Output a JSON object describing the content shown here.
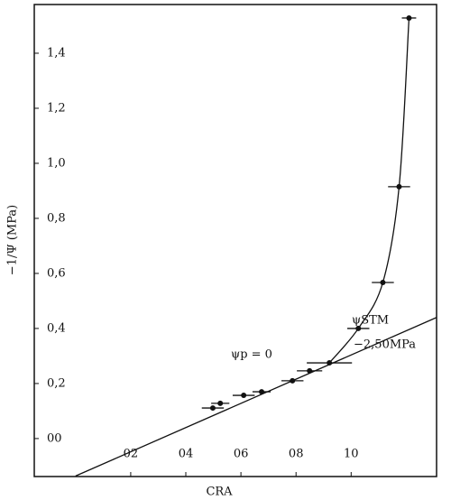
{
  "chart_data": {
    "type": "scatter",
    "x_label": "CRA",
    "y_label": "−1/Ψ (MPa)",
    "annotations": [
      "ψp = 0",
      "ψSTM",
      "−2,50MPa"
    ],
    "xlim": [
      -0.15,
      1.31
    ],
    "ylim": [
      -0.138,
      1.577
    ],
    "xticks": [
      {
        "value": 0.2,
        "label": "02"
      },
      {
        "value": 0.4,
        "label": "04"
      },
      {
        "value": 0.6,
        "label": "06"
      },
      {
        "value": 0.8,
        "label": "08"
      },
      {
        "value": 1.0,
        "label": "10"
      }
    ],
    "yticks": [
      {
        "value": 0,
        "label": "00"
      },
      {
        "value": 0.2,
        "label": "0,2"
      },
      {
        "value": 0.4,
        "label": "0,4"
      },
      {
        "value": 0.6,
        "label": "0,6"
      },
      {
        "value": 0.8,
        "label": "0,8"
      },
      {
        "value": 1.0,
        "label": "1,0"
      },
      {
        "value": 1.2,
        "label": "1,2"
      },
      {
        "value": 1.4,
        "label": "1,4"
      }
    ],
    "color": "#111111",
    "x": [
      0.498,
      0.525,
      0.61,
      0.675,
      0.787,
      0.849,
      0.921,
      1.026,
      1.115,
      1.174,
      1.21
    ],
    "values": [
      0.111,
      0.128,
      0.157,
      0.17,
      0.21,
      0.246,
      0.275,
      0.4,
      0.567,
      0.915,
      1.528
    ],
    "xerr": [
      0.04,
      0.033,
      0.04,
      0.033,
      0.04,
      0.046,
      0.082,
      0.04,
      0.04,
      0.04,
      0.026
    ],
    "line": {
      "x": [
        0,
        1.31
      ],
      "y": [
        -0.136,
        0.44
      ]
    }
  }
}
